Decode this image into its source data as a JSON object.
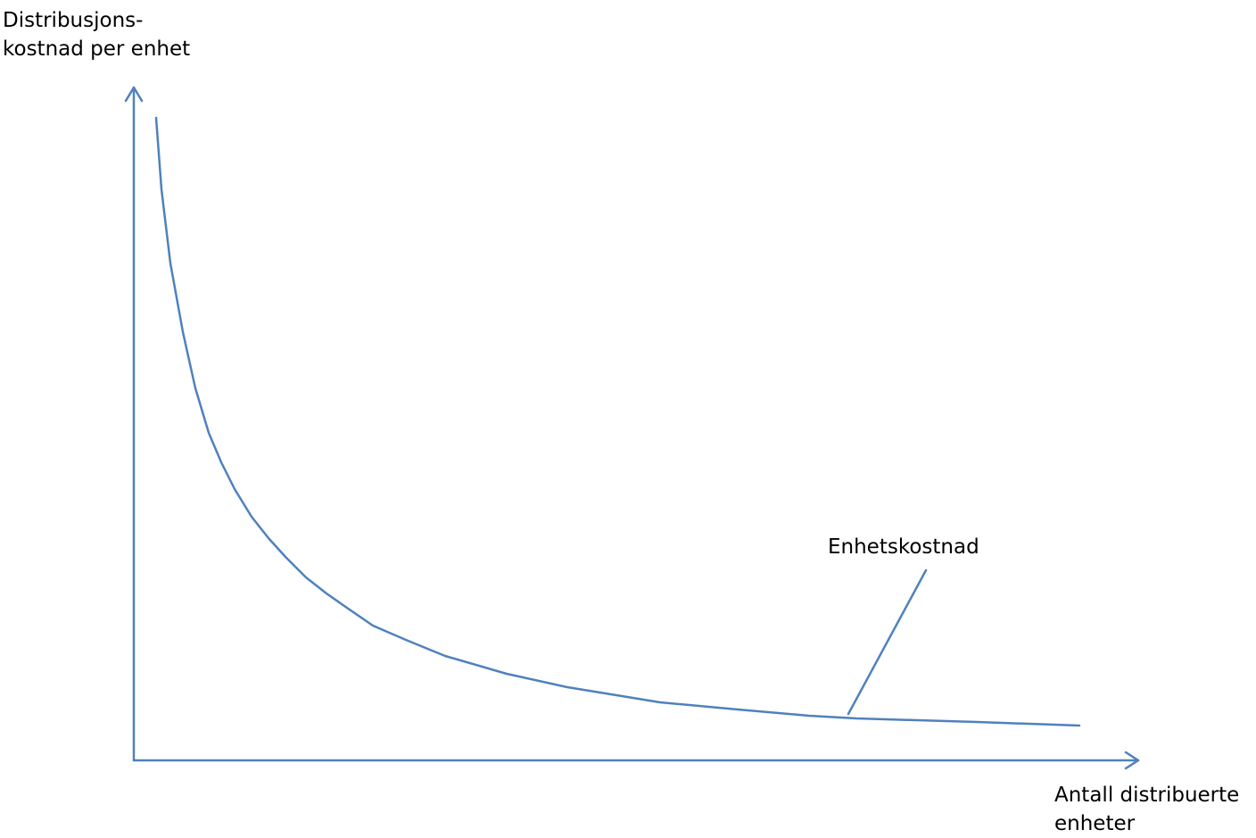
{
  "y_axis_label": [
    "Distribusjons-",
    "kostnad per enhet"
  ],
  "x_axis_label": [
    "Antall distribuerte",
    "enheter"
  ],
  "curve_label": "Enhetskostnad",
  "colors": {
    "line": "#4f81bd",
    "text": "#000000",
    "background": "#ffffff"
  }
}
